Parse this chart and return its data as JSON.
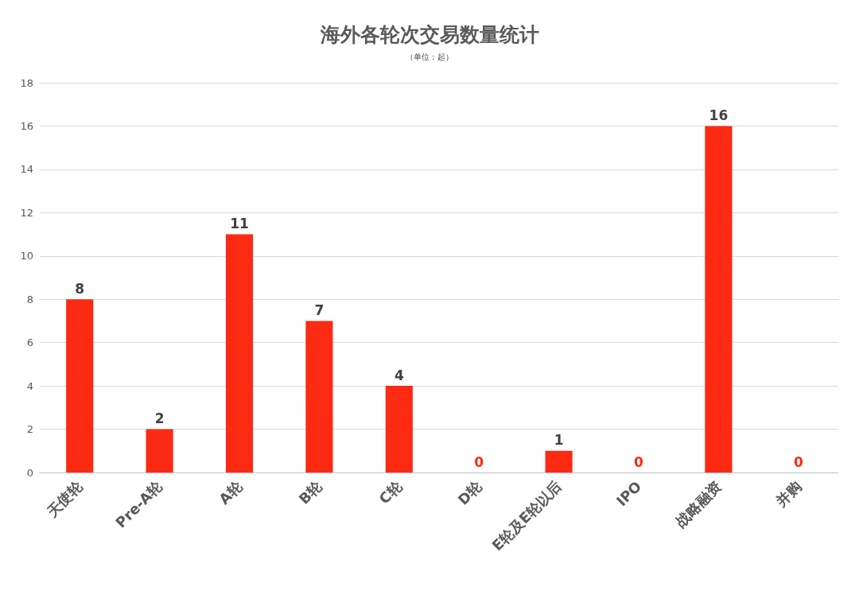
{
  "chart_data": {
    "type": "bar",
    "title": "海外各轮次交易数量统计",
    "subtitle": "（单位：起）",
    "categories": [
      "天使轮",
      "Pre-A轮",
      "A轮",
      "B轮",
      "C轮",
      "D轮",
      "E轮及E轮以后",
      "IPO",
      "战略融资",
      "并购"
    ],
    "values": [
      8,
      2,
      11,
      7,
      4,
      0,
      1,
      0,
      16,
      0
    ],
    "color": "#fc2a12",
    "ylim": [
      0,
      18
    ],
    "yticks": [
      0,
      2,
      4,
      6,
      8,
      10,
      12,
      14,
      16,
      18
    ],
    "grid": "y",
    "data_labels": true
  }
}
